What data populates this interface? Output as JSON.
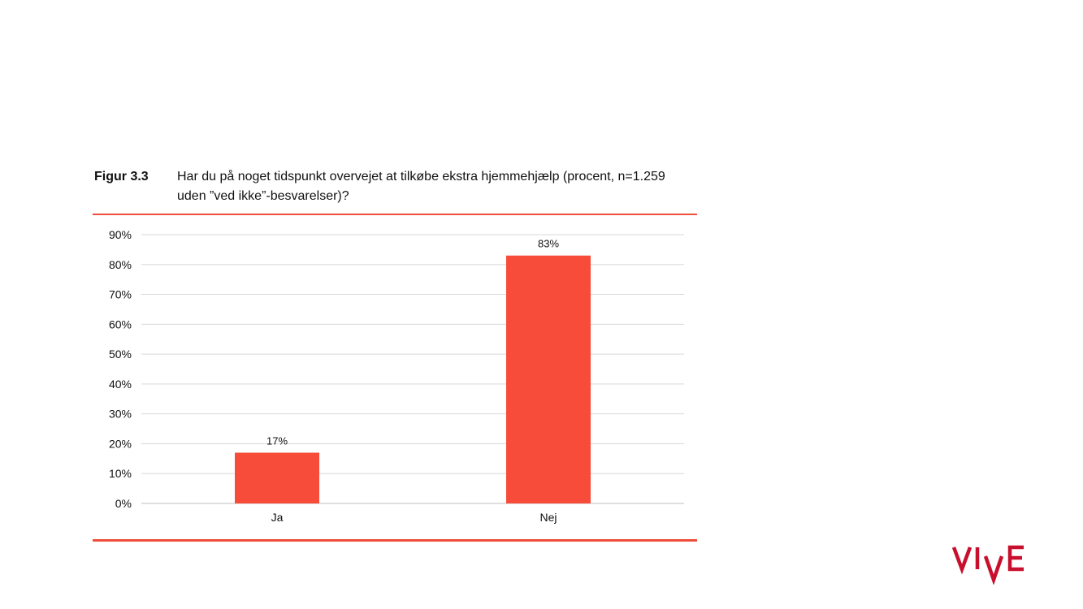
{
  "figure": {
    "label": "Figur 3.3",
    "title": "Har du på noget tidspunkt overvejet at tilkøbe ekstra hjemmehjælp (procent, n=1.259 uden ”ved ikke”-besvarelser)?"
  },
  "logo": {
    "text": "VIVE",
    "color": "#c8102e"
  },
  "colors": {
    "accent": "#f04d3a",
    "bar": "#f84c3b",
    "grid": "#d9d9d9"
  },
  "chart_data": {
    "type": "bar",
    "categories": [
      "Ja",
      "Nej"
    ],
    "values": [
      17,
      83
    ],
    "value_labels": [
      "17%",
      "83%"
    ],
    "y_ticks": [
      "0%",
      "10%",
      "20%",
      "30%",
      "40%",
      "50%",
      "60%",
      "70%",
      "80%",
      "90%"
    ],
    "ylim": [
      0,
      90
    ],
    "grid": true,
    "title": "",
    "xlabel": "",
    "ylabel": ""
  }
}
